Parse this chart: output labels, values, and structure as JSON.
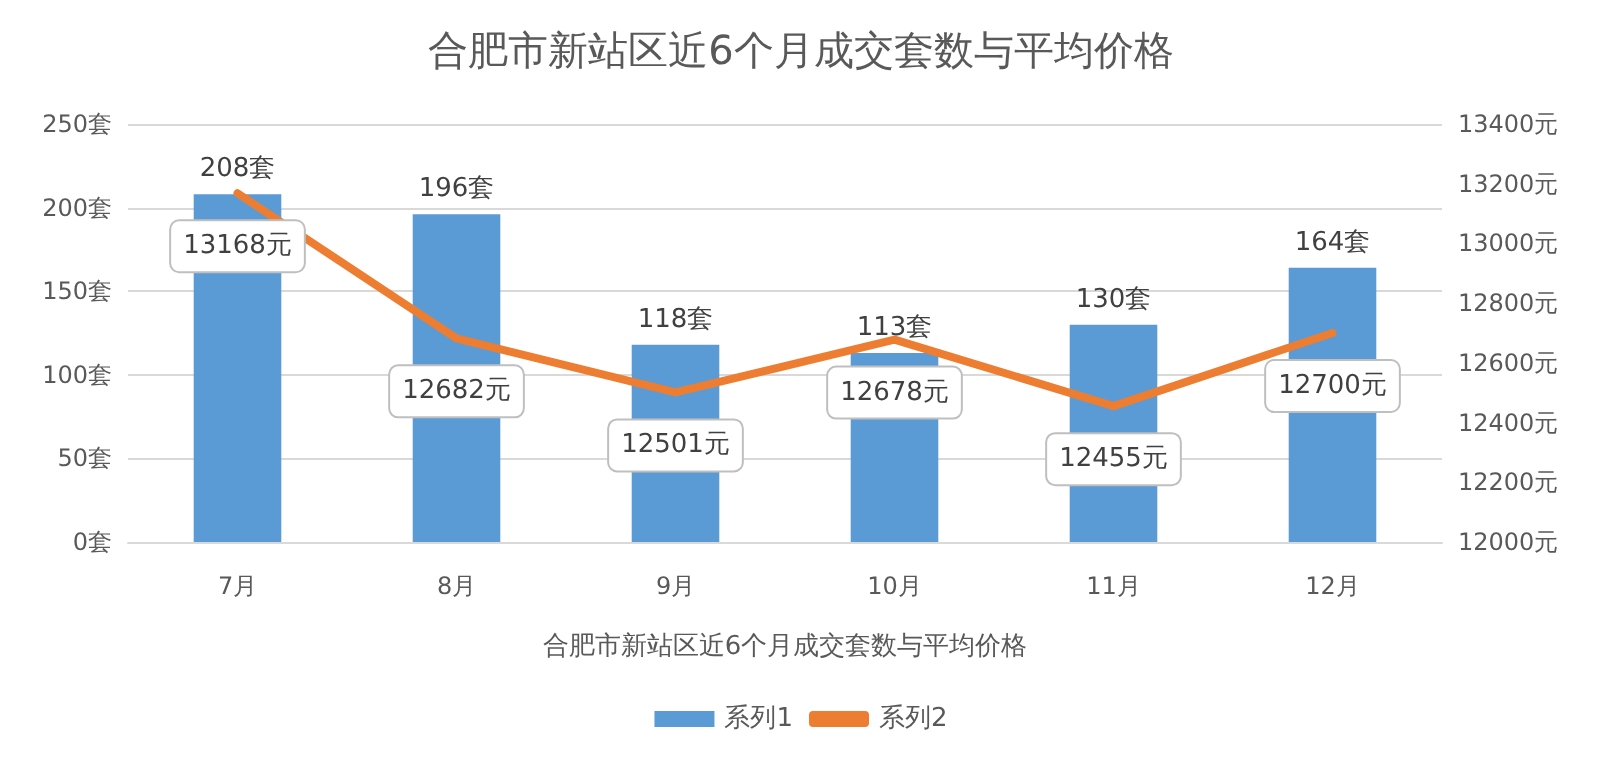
{
  "chart_data": {
    "type": "bar",
    "title": "合肥市新站区近6个月成交套数与平均价格",
    "xlabel": "合肥市新站区近6个月成交套数与平均价格",
    "categories": [
      "7月",
      "8月",
      "9月",
      "10月",
      "11月",
      "12月"
    ],
    "series": [
      {
        "name": "系列1",
        "color": "#5b9bd5",
        "values": [
          208,
          196,
          118,
          113,
          130,
          164
        ],
        "value_labels": [
          "208套",
          "196套",
          "118套",
          "113套",
          "130套",
          "164套"
        ]
      },
      {
        "name": "系列2",
        "type": "line",
        "axis": "y2",
        "color": "#ed7d31",
        "values": [
          13168,
          12682,
          12501,
          12678,
          12455,
          12700
        ],
        "value_labels": [
          "13168元",
          "12682元",
          "12501元",
          "12678元",
          "12455元",
          "12700元"
        ]
      }
    ],
    "ylim": [
      0,
      250
    ],
    "yticks": [
      {
        "value": 0,
        "label": "0套"
      },
      {
        "value": 50,
        "label": "50套"
      },
      {
        "value": 100,
        "label": "100套"
      },
      {
        "value": 150,
        "label": "150套"
      },
      {
        "value": 200,
        "label": "200套"
      },
      {
        "value": 250,
        "label": "250套"
      }
    ],
    "y2lim": [
      12000,
      13400
    ],
    "y2ticks": [
      {
        "value": 12000,
        "label": "12000元"
      },
      {
        "value": 12200,
        "label": "12200元"
      },
      {
        "value": 12400,
        "label": "12400元"
      },
      {
        "value": 12600,
        "label": "12600元"
      },
      {
        "value": 12800,
        "label": "12800元"
      },
      {
        "value": 13000,
        "label": "13000元"
      },
      {
        "value": 13200,
        "label": "13200元"
      },
      {
        "value": 13400,
        "label": "13400元"
      }
    ],
    "grid": "y",
    "legend": "bottom",
    "marker": "none",
    "line_style": "solid"
  }
}
